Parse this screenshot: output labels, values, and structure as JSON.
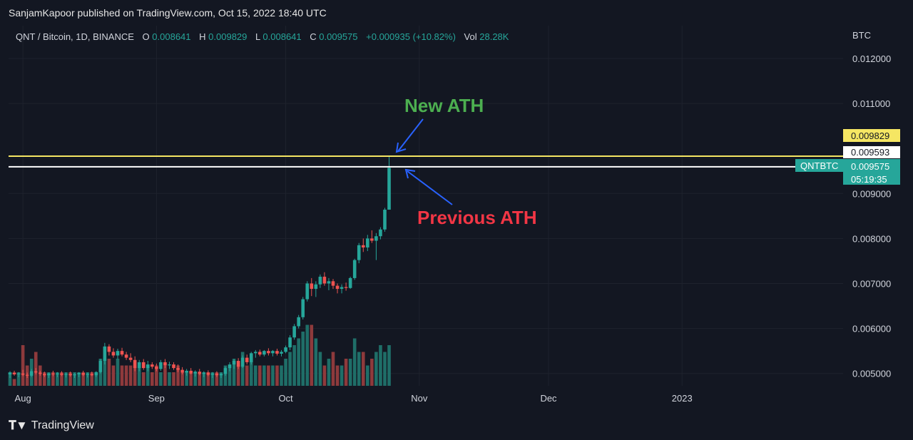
{
  "header": {
    "published": "SanjamKapoor published on TradingView.com, Oct 15, 2022 18:40 UTC"
  },
  "legend": {
    "symbol": "QNT / Bitcoin, 1D, BINANCE",
    "o_label": "O",
    "o_value": "0.008641",
    "h_label": "H",
    "h_value": "0.009829",
    "l_label": "L",
    "l_value": "0.008641",
    "c_label": "C",
    "c_value": "0.009575",
    "change": "+0.000935 (+10.82%)",
    "vol_label": "Vol",
    "vol_value": "28.28K"
  },
  "axis": {
    "currency": "BTC"
  },
  "price_tags": {
    "high": "0.009829",
    "prev_ath": "0.009593",
    "symbol": "QNTBTC",
    "last": "0.009575",
    "countdown": "05:19:35"
  },
  "annotations": {
    "new_ath": "New ATH",
    "prev_ath": "Previous ATH"
  },
  "footer": {
    "brand": "TradingView"
  },
  "colors": {
    "bg": "#131722",
    "up": "#26a69a",
    "down": "#ef5350",
    "up_volume": "#1f6e68",
    "down_volume": "#8e3a3c",
    "ath_line": "#f5e663",
    "prev_line": "#ffffff",
    "new_ath_text": "#4caf50",
    "prev_ath_text": "#f23645",
    "arrow": "#2962ff"
  },
  "chart_data": {
    "type": "candlestick",
    "title": "QNT / Bitcoin, 1D, BINANCE",
    "ylabel": "BTC",
    "ylim": [
      0.0047,
      0.0126
    ],
    "y_ticks": [
      "0.012000",
      "0.011000",
      "0.009000",
      "0.008000",
      "0.007000",
      "0.006000",
      "0.005000"
    ],
    "x_ticks": [
      "Aug",
      "Sep",
      "Oct",
      "Nov",
      "Dec",
      "2023"
    ],
    "x_tick_days": [
      3,
      34,
      64,
      95,
      125,
      156
    ],
    "first_day": "2022-07-30",
    "horizontal_lines": [
      {
        "name": "New ATH",
        "value": 0.009829
      },
      {
        "name": "Previous ATH",
        "value": 0.009593
      }
    ],
    "candles": [
      [
        0.00498,
        0.00505,
        0.0049,
        0.00502,
        2
      ],
      [
        0.00502,
        0.00506,
        0.00495,
        0.00498,
        1
      ],
      [
        0.00498,
        0.00503,
        0.00492,
        0.005,
        2
      ],
      [
        0.005,
        0.00508,
        0.00494,
        0.00497,
        6
      ],
      [
        0.00497,
        0.00502,
        0.0049,
        0.00495,
        3
      ],
      [
        0.00495,
        0.0051,
        0.00492,
        0.00505,
        4
      ],
      [
        0.00505,
        0.00512,
        0.00498,
        0.00502,
        5
      ],
      [
        0.00502,
        0.00506,
        0.00495,
        0.00499,
        3
      ],
      [
        0.00499,
        0.00504,
        0.00492,
        0.00496,
        2
      ],
      [
        0.00496,
        0.00502,
        0.0049,
        0.005,
        2
      ],
      [
        0.005,
        0.00506,
        0.00494,
        0.00498,
        2
      ],
      [
        0.00498,
        0.00503,
        0.00492,
        0.005,
        2
      ],
      [
        0.005,
        0.00505,
        0.00494,
        0.00497,
        2
      ],
      [
        0.00497,
        0.00502,
        0.00491,
        0.00499,
        2
      ],
      [
        0.00499,
        0.00504,
        0.00493,
        0.00496,
        2
      ],
      [
        0.00496,
        0.00501,
        0.0049,
        0.00498,
        2
      ],
      [
        0.00498,
        0.00503,
        0.00492,
        0.00501,
        2
      ],
      [
        0.00501,
        0.00506,
        0.00494,
        0.00497,
        2
      ],
      [
        0.00497,
        0.00502,
        0.00491,
        0.00499,
        2
      ],
      [
        0.00499,
        0.00504,
        0.00494,
        0.00496,
        2
      ],
      [
        0.00496,
        0.00505,
        0.00492,
        0.00503,
        2
      ],
      [
        0.00503,
        0.00532,
        0.005,
        0.00528,
        4
      ],
      [
        0.00528,
        0.00568,
        0.0052,
        0.0056,
        4
      ],
      [
        0.0056,
        0.00565,
        0.0054,
        0.00548,
        4
      ],
      [
        0.00548,
        0.00556,
        0.00535,
        0.0054,
        3
      ],
      [
        0.0054,
        0.00555,
        0.00532,
        0.0055,
        4
      ],
      [
        0.0055,
        0.00557,
        0.00538,
        0.00542,
        3
      ],
      [
        0.00542,
        0.00548,
        0.0053,
        0.00535,
        3
      ],
      [
        0.00535,
        0.00545,
        0.00525,
        0.0053,
        3
      ],
      [
        0.0053,
        0.00538,
        0.00505,
        0.00512,
        3
      ],
      [
        0.00512,
        0.0053,
        0.00505,
        0.00525,
        3
      ],
      [
        0.00525,
        0.00532,
        0.00508,
        0.00512,
        2
      ],
      [
        0.00512,
        0.00528,
        0.00505,
        0.0052,
        3
      ],
      [
        0.0052,
        0.00525,
        0.0051,
        0.00515,
        2
      ],
      [
        0.00515,
        0.00522,
        0.00505,
        0.0051,
        3
      ],
      [
        0.0051,
        0.0053,
        0.00506,
        0.00525,
        2
      ],
      [
        0.00525,
        0.00532,
        0.00512,
        0.00518,
        3
      ],
      [
        0.00518,
        0.00526,
        0.0051,
        0.0052,
        2
      ],
      [
        0.0052,
        0.00525,
        0.00508,
        0.00512,
        2
      ],
      [
        0.00512,
        0.0052,
        0.00503,
        0.00508,
        3
      ],
      [
        0.00508,
        0.00514,
        0.00498,
        0.00502,
        2
      ],
      [
        0.00502,
        0.0051,
        0.00495,
        0.00506,
        2
      ],
      [
        0.00506,
        0.00512,
        0.00498,
        0.005,
        2
      ],
      [
        0.005,
        0.00507,
        0.00493,
        0.00504,
        2
      ],
      [
        0.00504,
        0.0051,
        0.00496,
        0.00499,
        2
      ],
      [
        0.00499,
        0.00505,
        0.00492,
        0.00502,
        2
      ],
      [
        0.00502,
        0.00507,
        0.00494,
        0.00497,
        2
      ],
      [
        0.00497,
        0.00503,
        0.0049,
        0.005,
        2
      ],
      [
        0.005,
        0.00505,
        0.00492,
        0.00496,
        2
      ],
      [
        0.00496,
        0.00502,
        0.0049,
        0.00499,
        2
      ],
      [
        0.00499,
        0.00515,
        0.00495,
        0.00512,
        3
      ],
      [
        0.00512,
        0.00525,
        0.00505,
        0.0052,
        3
      ],
      [
        0.0052,
        0.00532,
        0.0051,
        0.00528,
        4
      ],
      [
        0.00528,
        0.00534,
        0.0051,
        0.00515,
        3
      ],
      [
        0.00515,
        0.0054,
        0.00512,
        0.00535,
        5
      ],
      [
        0.00535,
        0.00542,
        0.0052,
        0.00525,
        3
      ],
      [
        0.00525,
        0.00548,
        0.0052,
        0.00545,
        4
      ],
      [
        0.00545,
        0.00552,
        0.00535,
        0.00548,
        3
      ],
      [
        0.00548,
        0.00553,
        0.00538,
        0.00542,
        3
      ],
      [
        0.00542,
        0.00552,
        0.00538,
        0.0055,
        3
      ],
      [
        0.0055,
        0.00556,
        0.0054,
        0.00545,
        3
      ],
      [
        0.00545,
        0.00552,
        0.00538,
        0.0055,
        3
      ],
      [
        0.0055,
        0.00555,
        0.0054,
        0.00544,
        3
      ],
      [
        0.00544,
        0.00552,
        0.00538,
        0.00548,
        3
      ],
      [
        0.00548,
        0.00562,
        0.00545,
        0.00558,
        4
      ],
      [
        0.00558,
        0.00585,
        0.00552,
        0.0058,
        5
      ],
      [
        0.0058,
        0.0061,
        0.00575,
        0.00605,
        6
      ],
      [
        0.00605,
        0.0063,
        0.006,
        0.00625,
        7
      ],
      [
        0.00625,
        0.0067,
        0.0062,
        0.00665,
        8
      ],
      [
        0.00665,
        0.00705,
        0.0066,
        0.007,
        9
      ],
      [
        0.007,
        0.00712,
        0.00672,
        0.00688,
        9
      ],
      [
        0.00688,
        0.00705,
        0.0067,
        0.00698,
        7
      ],
      [
        0.00698,
        0.0072,
        0.0069,
        0.00715,
        5
      ],
      [
        0.00715,
        0.00725,
        0.00695,
        0.007,
        3
      ],
      [
        0.007,
        0.00712,
        0.00685,
        0.00705,
        4
      ],
      [
        0.00705,
        0.0071,
        0.00688,
        0.00695,
        5
      ],
      [
        0.00695,
        0.007,
        0.00678,
        0.00688,
        3
      ],
      [
        0.00688,
        0.00698,
        0.00678,
        0.00692,
        3
      ],
      [
        0.00692,
        0.00702,
        0.00684,
        0.0069,
        4
      ],
      [
        0.0069,
        0.00715,
        0.00688,
        0.00712,
        4
      ],
      [
        0.00712,
        0.00755,
        0.00708,
        0.00752,
        7
      ],
      [
        0.00752,
        0.0079,
        0.00745,
        0.00785,
        5
      ],
      [
        0.00785,
        0.008,
        0.0077,
        0.0078,
        5
      ],
      [
        0.0078,
        0.00808,
        0.00772,
        0.008,
        3
      ],
      [
        0.008,
        0.00818,
        0.0079,
        0.00795,
        4
      ],
      [
        0.00795,
        0.00812,
        0.00752,
        0.00805,
        5
      ],
      [
        0.00805,
        0.00825,
        0.00798,
        0.0082,
        6
      ],
      [
        0.0082,
        0.00868,
        0.00815,
        0.00864,
        5
      ],
      [
        0.00864,
        0.00983,
        0.00864,
        0.00957,
        6
      ]
    ]
  }
}
